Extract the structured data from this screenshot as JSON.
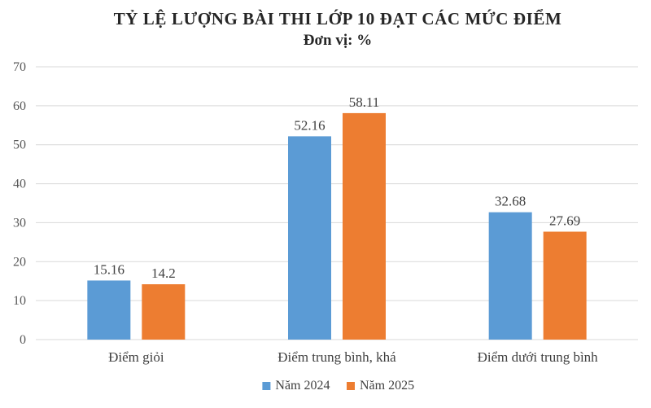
{
  "chart_data": {
    "type": "bar",
    "title": "TỶ LỆ LƯỢNG BÀI THI LỚP 10 ĐẠT CÁC MỨC ĐIỂM",
    "subtitle": "Đơn vị: %",
    "categories": [
      "Điểm giỏi",
      "Điểm trung bình, khá",
      "Điểm dưới trung bình"
    ],
    "series": [
      {
        "name": "Năm 2024",
        "values": [
          15.16,
          52.16,
          32.68
        ],
        "color": "#5b9bd5"
      },
      {
        "name": "Năm 2025",
        "values": [
          14.2,
          58.11,
          27.69
        ],
        "color": "#ed7d31"
      }
    ],
    "ylim": [
      0,
      70
    ],
    "yticks": [
      0,
      10,
      20,
      30,
      40,
      50,
      60,
      70
    ],
    "grid": true,
    "legend_position": "bottom"
  }
}
